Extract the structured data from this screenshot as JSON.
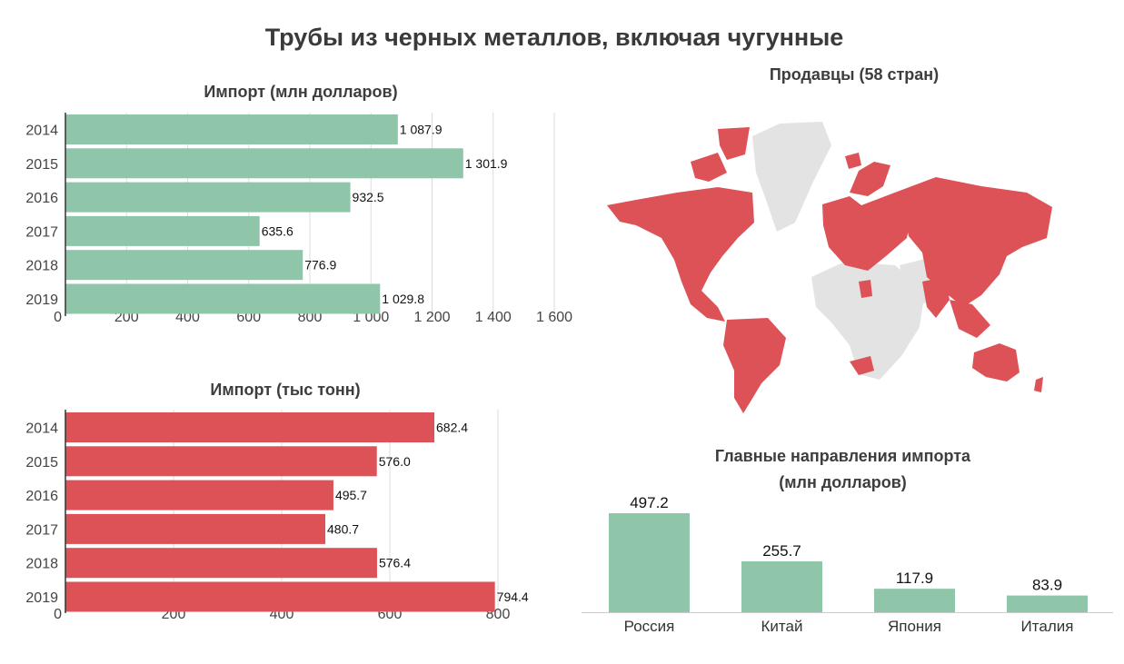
{
  "title": "Трубы из черных металлов, включая чугунные",
  "colors": {
    "green": "#8fc5a8",
    "red": "#dd5256",
    "land": "#e3e3e3",
    "grid": "#dddddd",
    "axis": "#333333"
  },
  "map": {
    "title": "Продавцы (58 стран)"
  },
  "chart_data": [
    {
      "type": "bar",
      "orientation": "horizontal",
      "title": "Импорт (млн долларов)",
      "categories": [
        "2014",
        "2015",
        "2016",
        "2017",
        "2018",
        "2019"
      ],
      "values": [
        1087.9,
        1301.9,
        932.5,
        635.6,
        776.9,
        1029.8
      ],
      "value_labels": [
        "1 087.9",
        "1 301.9",
        "932.5",
        "635.6",
        "776.9",
        "1 029.8"
      ],
      "ticks": [
        0,
        200,
        400,
        600,
        800,
        1000,
        1200,
        1400,
        1600
      ],
      "tick_labels": [
        "0",
        "200",
        "400",
        "600",
        "800",
        "1 000",
        "1 200",
        "1 400",
        "1 600"
      ],
      "xlim": [
        0,
        1600
      ],
      "grid": true,
      "color": "#8fc5a8"
    },
    {
      "type": "bar",
      "orientation": "horizontal",
      "title": "Импорт (тыс тонн)",
      "categories": [
        "2014",
        "2015",
        "2016",
        "2017",
        "2018",
        "2019"
      ],
      "values": [
        682.4,
        576.0,
        495.7,
        480.7,
        576.4,
        794.4
      ],
      "value_labels": [
        "682.4",
        "576.0",
        "495.7",
        "480.7",
        "576.4",
        "794.4"
      ],
      "ticks": [
        0,
        200,
        400,
        600,
        800
      ],
      "tick_labels": [
        "0",
        "200",
        "400",
        "600",
        "800"
      ],
      "xlim": [
        0,
        800
      ],
      "grid": true,
      "color": "#dd5256"
    },
    {
      "type": "bar",
      "orientation": "vertical",
      "title": "Главные направления импорта (млн долларов)",
      "title_lines": [
        "Главные направления импорта",
        "(млн долларов)"
      ],
      "categories": [
        "Россия",
        "Китай",
        "Япония",
        "Италия"
      ],
      "values": [
        497.2,
        255.7,
        117.9,
        83.9
      ],
      "value_labels": [
        "497.2",
        "255.7",
        "117.9",
        "83.9"
      ],
      "grid": false,
      "color": "#8fc5a8"
    }
  ]
}
